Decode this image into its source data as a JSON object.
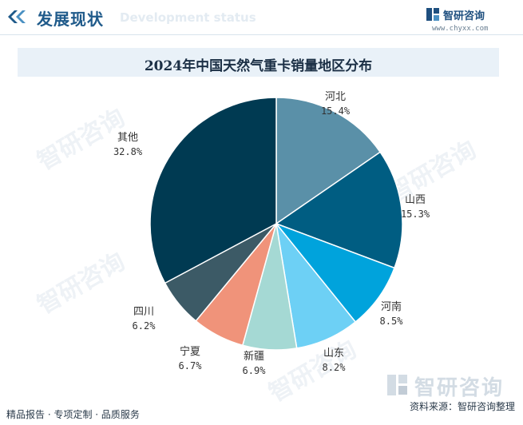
{
  "header": {
    "title": "发展现状",
    "subtitle": "Development status"
  },
  "brand": {
    "name": "智研咨询",
    "url": "www.chyxx.com"
  },
  "chart_data": {
    "type": "pie",
    "title": "2024年中国天然气重卡销量地区分布",
    "slices": [
      {
        "label": "河北",
        "value": 15.4,
        "pct": "15.4%",
        "color": "#5a90a8"
      },
      {
        "label": "山西",
        "value": 15.3,
        "pct": "15.3%",
        "color": "#005d82"
      },
      {
        "label": "河南",
        "value": 8.5,
        "pct": "8.5%",
        "color": "#00a3dc"
      },
      {
        "label": "山东",
        "value": 8.2,
        "pct": "8.2%",
        "color": "#6dd0f5"
      },
      {
        "label": "新疆",
        "value": 6.9,
        "pct": "6.9%",
        "color": "#a5d9d4"
      },
      {
        "label": "宁夏",
        "value": 6.7,
        "pct": "6.7%",
        "color": "#f0937a"
      },
      {
        "label": "四川",
        "value": 6.2,
        "pct": "6.2%",
        "color": "#3c5a66"
      },
      {
        "label": "其他",
        "value": 32.8,
        "pct": "32.8%",
        "color": "#003a52"
      }
    ],
    "legend": "none",
    "start_angle": "12 o'clock, clockwise"
  },
  "watermark": {
    "text": "智研咨询"
  },
  "footer": {
    "left": "精品报告 · 专项定制 · 品质服务",
    "source": "资料来源：智研咨询整理",
    "logo": "智研咨询"
  }
}
